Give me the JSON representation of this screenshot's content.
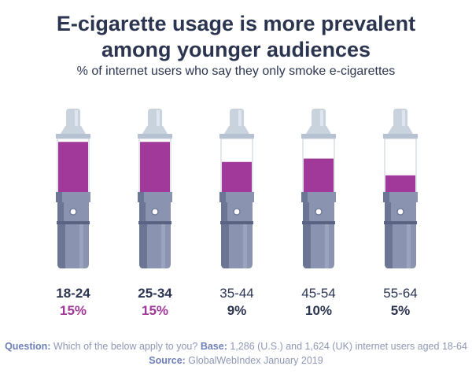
{
  "title_line1": "E-cigarette usage is more prevalent",
  "title_line2": "among younger audiences",
  "subtitle": "% of internet users who say they only smoke e-cigarettes",
  "chart_data": {
    "type": "bar",
    "categories": [
      "18-24",
      "25-34",
      "35-44",
      "45-54",
      "55-64"
    ],
    "values": [
      15,
      15,
      9,
      10,
      5
    ],
    "value_labels": [
      "15%",
      "15%",
      "9%",
      "10%",
      "5%"
    ],
    "highlight": [
      true,
      true,
      false,
      false,
      false
    ],
    "ylim": [
      0,
      16
    ],
    "colors": {
      "fill": "#a0399a",
      "highlight_text": "#a0399a",
      "normal_text": "#2c3550",
      "body_dark": "#6b7694",
      "body_light": "#8a94b0",
      "tip": "#c9d3de"
    }
  },
  "footer": {
    "question_label": "Question:",
    "question_text": "Which of the below apply to you?",
    "base_label": "Base:",
    "base_text": "1,286 (U.S.) and 1,624 (UK) internet users aged 18-64",
    "source_label": "Source:",
    "source_text": "GlobalWebIndex January 2019"
  }
}
